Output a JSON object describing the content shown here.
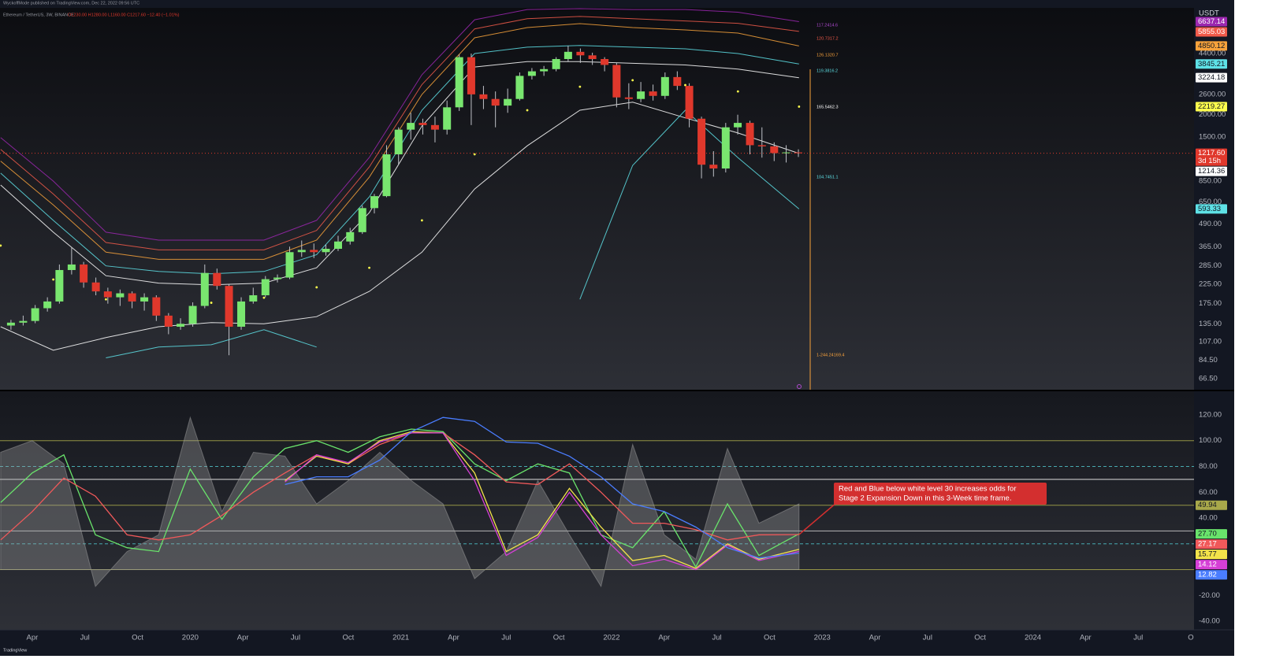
{
  "header": {
    "publisher": "WyckoffMode published on TradingView.com, Dec 22, 2022 09:56 UTC",
    "symbol": "Ethereum / TetherUS, 3W, BINANCE",
    "ohlc": "O1230.00 H1280.00 L1160.00 C1217.60 −12.40 (−1.01%)"
  },
  "footer": "TradingView",
  "chart_data": [
    {
      "type": "candlestick",
      "currency": "USDT",
      "log_scale": true,
      "up_color": "#79e66f",
      "down_color": "#e0382c",
      "xlim": [
        2019.097,
        2024.765
      ],
      "ylim": [
        57.7,
        7930
      ],
      "yticks": [
        {
          "value": 66.5,
          "label": "66.50"
        },
        {
          "value": 84.5,
          "label": "84.50"
        },
        {
          "value": 107,
          "label": "107.00"
        },
        {
          "value": 135,
          "label": "135.00"
        },
        {
          "value": 175,
          "label": "175.00"
        },
        {
          "value": 225,
          "label": "225.00"
        },
        {
          "value": 285,
          "label": "285.00"
        },
        {
          "value": 365,
          "label": "365.00"
        },
        {
          "value": 490,
          "label": "490.00"
        },
        {
          "value": 650,
          "label": "650.00"
        },
        {
          "value": 850,
          "label": "850.00"
        },
        {
          "value": 1500,
          "label": "1500.00"
        },
        {
          "value": 2000,
          "label": "2000.00"
        },
        {
          "value": 2600,
          "label": "2600.00"
        },
        {
          "value": 4400,
          "label": "4400.00"
        }
      ],
      "x": [
        2019.149,
        2019.207,
        2019.264,
        2019.322,
        2019.379,
        2019.437,
        2019.494,
        2019.552,
        2019.609,
        2019.667,
        2019.724,
        2019.782,
        2019.839,
        2019.897,
        2019.954,
        2020.012,
        2020.069,
        2020.127,
        2020.184,
        2020.242,
        2020.299,
        2020.357,
        2020.414,
        2020.472,
        2020.529,
        2020.587,
        2020.644,
        2020.702,
        2020.759,
        2020.817,
        2020.874,
        2020.932,
        2020.989,
        2021.047,
        2021.104,
        2021.162,
        2021.219,
        2021.277,
        2021.334,
        2021.392,
        2021.449,
        2021.507,
        2021.564,
        2021.622,
        2021.679,
        2021.737,
        2021.794,
        2021.852,
        2021.909,
        2021.967,
        2022.024,
        2022.082,
        2022.139,
        2022.197,
        2022.254,
        2022.312,
        2022.369,
        2022.427,
        2022.484,
        2022.542,
        2022.599,
        2022.657,
        2022.714,
        2022.772,
        2022.829,
        2022.887
      ],
      "open": [
        132,
        137,
        140,
        165,
        180,
        270,
        290,
        230,
        205,
        190,
        200,
        180,
        190,
        150,
        130,
        135,
        170,
        260,
        220,
        130,
        180,
        195,
        240,
        245,
        340,
        350,
        340,
        355,
        390,
        440,
        600,
        700,
        1200,
        1650,
        1800,
        1750,
        1650,
        2200,
        4200,
        2600,
        2450,
        2250,
        2450,
        3300,
        3500,
        3600,
        4100,
        4500,
        4300,
        4100,
        3800,
        2500,
        2450,
        2700,
        2550,
        3250,
        2900,
        1900,
        1050,
        1000,
        1700,
        1800,
        1350,
        1330,
        1220,
        1230
      ],
      "high": [
        142,
        150,
        172,
        190,
        290,
        360,
        300,
        245,
        215,
        210,
        205,
        200,
        195,
        155,
        145,
        178,
        290,
        275,
        225,
        190,
        215,
        250,
        255,
        365,
        395,
        380,
        375,
        420,
        465,
        620,
        720,
        1350,
        1700,
        2050,
        1900,
        1950,
        2400,
        4350,
        4400,
        2900,
        2700,
        2800,
        3450,
        3650,
        3750,
        4200,
        4870,
        4700,
        4450,
        4200,
        3900,
        3000,
        3050,
        2950,
        3450,
        3500,
        3000,
        1950,
        1250,
        1800,
        2000,
        1850,
        1700,
        1400,
        1350,
        1280
      ],
      "low": [
        125,
        132,
        136,
        158,
        175,
        255,
        215,
        195,
        175,
        170,
        165,
        160,
        140,
        118,
        125,
        130,
        165,
        210,
        90,
        125,
        175,
        190,
        230,
        240,
        320,
        315,
        325,
        345,
        375,
        430,
        560,
        690,
        1050,
        1450,
        1550,
        1400,
        1550,
        2100,
        1750,
        2150,
        1700,
        2050,
        2400,
        3150,
        3300,
        3500,
        3950,
        3900,
        3800,
        3500,
        2200,
        2150,
        2350,
        2400,
        2450,
        2750,
        1700,
        880,
        900,
        950,
        1550,
        1200,
        1150,
        1100,
        1080,
        1160
      ],
      "close": [
        137,
        140,
        165,
        180,
        270,
        290,
        230,
        205,
        190,
        200,
        180,
        190,
        150,
        130,
        135,
        170,
        260,
        220,
        130,
        180,
        195,
        240,
        245,
        340,
        350,
        340,
        355,
        390,
        440,
        600,
        700,
        1200,
        1650,
        1800,
        1750,
        1650,
        2200,
        4200,
        2600,
        2450,
        2250,
        2450,
        3300,
        3500,
        3600,
        4100,
        4500,
        4300,
        4100,
        3800,
        2500,
        2450,
        2700,
        2550,
        3250,
        2900,
        1900,
        1050,
        1000,
        1700,
        1800,
        1350,
        1330,
        1220,
        1230,
        1217.6
      ],
      "price_tag": {
        "value": 1217.6,
        "label": "1217.60",
        "countdown": "3d 15h",
        "color": "#e0382c"
      },
      "bands": {
        "x": [
          2019.1,
          2019.35,
          2019.6,
          2019.85,
          2020.1,
          2020.35,
          2020.6,
          2020.85,
          2021.1,
          2021.35,
          2021.6,
          2021.85,
          2022.1,
          2022.35,
          2022.6,
          2022.89
        ],
        "series": [
          {
            "color": "#9c27b0",
            "text_color": "#ffffff",
            "style": "line",
            "values": [
              1488,
              850,
              440,
              397,
              397,
              397,
              512,
              1153,
              3350,
              6800,
              7760,
              7850,
              7760,
              7760,
              7500,
              6637.14
            ]
          },
          {
            "color": "#f05a4a",
            "text_color": "#ffffff",
            "style": "line",
            "values": [
              1280,
              720,
              385,
              350,
              350,
              350,
              450,
              1020,
              2950,
              6050,
              6900,
              7100,
              6900,
              6700,
              6500,
              5855.03
            ]
          },
          {
            "color": "#f7a23b",
            "text_color": "#131722",
            "style": "line",
            "values": [
              1100,
              625,
              340,
              310,
              310,
              310,
              397,
              895,
              2600,
              5390,
              6150,
              6470,
              6150,
              5970,
              5730,
              4850.12
            ]
          },
          {
            "color": "#5ee1e6",
            "text_color": "#131722",
            "style": "line",
            "values": [
              942,
              512,
              285,
              265,
              257,
              265,
              329,
              693,
              2120,
              4400,
              4780,
              4880,
              4780,
              4680,
              4400,
              3845.21
            ]
          },
          {
            "color": "#ffffff",
            "text_color": "#131722",
            "style": "line",
            "values": [
              808,
              440,
              251,
              228,
              223,
              228,
              278,
              566,
              1730,
              3700,
              3970,
              3970,
              3880,
              3800,
              3600,
              3224.18
            ]
          },
          {
            "color": "#ffff4d",
            "text_color": "#131722",
            "style": "dots",
            "values": [
              370,
              239,
              185,
              173,
              177,
              189,
              216,
              278,
              512,
              1200,
              2120,
              2870,
              3120,
              2930,
              2700,
              2219.27
            ]
          },
          {
            "color": "#ffffff",
            "text_color": "#131722",
            "style": "line",
            "values": [
              130,
              96,
              113,
              130,
              137,
              135,
              148,
              205,
              340,
              767,
              1340,
              2120,
              2350,
              1920,
              1580,
              1214.36
            ]
          },
          {
            "color": "#5ee1e6",
            "text_color": "#131722",
            "style": "line",
            "values": [
              null,
              null,
              87,
              100,
              103,
              125,
              100,
              null,
              null,
              null,
              null,
              185,
              1040,
              2120,
              1150,
              593.33
            ]
          }
        ]
      },
      "level_notes": [
        {
          "text": "117.2414.6",
          "color": "#b04ad0"
        },
        {
          "text": "120.7317.2",
          "color": "#f05a4a"
        },
        {
          "text": "126.1320.7",
          "color": "#f7a23b"
        },
        {
          "text": "119.3816.2",
          "color": "#5ee1e6"
        },
        {
          "text": "165.5462.3",
          "color": "#ffffff"
        },
        {
          "text": "104.7451.1",
          "color": "#5ee1e6"
        },
        {
          "text": "1-244.24169.4",
          "color": "#f7a23b"
        }
      ]
    },
    {
      "type": "line",
      "xlim": [
        2019.097,
        2024.765
      ],
      "ylim": [
        -46.7,
        138.3
      ],
      "xticks": [
        {
          "value": 2019.25,
          "label": "Apr"
        },
        {
          "value": 2019.5,
          "label": "Jul"
        },
        {
          "value": 2019.75,
          "label": "Oct"
        },
        {
          "value": 2020,
          "label": "2020"
        },
        {
          "value": 2020.25,
          "label": "Apr"
        },
        {
          "value": 2020.5,
          "label": "Jul"
        },
        {
          "value": 2020.75,
          "label": "Oct"
        },
        {
          "value": 2021,
          "label": "2021"
        },
        {
          "value": 2021.25,
          "label": "Apr"
        },
        {
          "value": 2021.5,
          "label": "Jul"
        },
        {
          "value": 2021.75,
          "label": "Oct"
        },
        {
          "value": 2022,
          "label": "2022"
        },
        {
          "value": 2022.25,
          "label": "Apr"
        },
        {
          "value": 2022.5,
          "label": "Jul"
        },
        {
          "value": 2022.75,
          "label": "Oct"
        },
        {
          "value": 2023,
          "label": "2023"
        },
        {
          "value": 2023.25,
          "label": "Apr"
        },
        {
          "value": 2023.5,
          "label": "Jul"
        },
        {
          "value": 2023.75,
          "label": "Oct"
        },
        {
          "value": 2024,
          "label": "2024"
        },
        {
          "value": 2024.25,
          "label": "Apr"
        },
        {
          "value": 2024.5,
          "label": "Jul"
        },
        {
          "value": 2024.75,
          "label": "O"
        }
      ],
      "yticks": [
        {
          "value": 120,
          "label": "120.00"
        },
        {
          "value": 100,
          "label": "100.00"
        },
        {
          "value": 80,
          "label": "80.00"
        },
        {
          "value": 60,
          "label": "60.00"
        },
        {
          "value": 40,
          "label": "40.00"
        },
        {
          "value": -20,
          "label": "-20.00"
        },
        {
          "value": -40,
          "label": "-40.00"
        }
      ],
      "x": [
        2019.1,
        2019.25,
        2019.4,
        2019.55,
        2019.7,
        2019.85,
        2020.0,
        2020.15,
        2020.3,
        2020.45,
        2020.6,
        2020.75,
        2020.9,
        2021.05,
        2021.2,
        2021.35,
        2021.5,
        2021.65,
        2021.8,
        2021.95,
        2022.1,
        2022.25,
        2022.4,
        2022.55,
        2022.7,
        2022.89
      ],
      "area": {
        "color": "#a0a0a0",
        "values": [
          91,
          100,
          82,
          -13,
          14,
          27,
          118,
          45,
          91,
          88,
          51,
          69,
          91,
          69,
          51,
          -7,
          14,
          69,
          27,
          -13,
          97,
          27,
          8,
          94,
          36,
          51
        ]
      },
      "series": [
        {
          "color": "#69e36b",
          "text_color": "#131722",
          "last_label": "27.70",
          "values": [
            52,
            75,
            89,
            27,
            17,
            14,
            78,
            39,
            72,
            94,
            100,
            91,
            103,
            109,
            107,
            82,
            69,
            82,
            75,
            27,
            17,
            45,
            2,
            51,
            11,
            27.7
          ]
        },
        {
          "color": "#f0595a",
          "text_color": "#ffffff",
          "last_label": "27.17",
          "values": [
            23,
            45,
            71,
            57,
            27,
            23,
            27,
            42,
            60,
            75,
            89,
            82,
            97,
            106,
            106,
            89,
            68,
            66,
            82,
            60,
            36,
            36,
            31,
            23,
            27,
            27.17
          ]
        },
        {
          "color": "#f3e34a",
          "text_color": "#131722",
          "last_label": "15.77",
          "values": [
            null,
            null,
            null,
            null,
            null,
            null,
            null,
            null,
            null,
            69,
            88,
            82,
            100,
            107,
            106,
            75,
            14,
            27,
            63,
            33,
            7,
            11,
            1,
            20,
            8,
            15.77
          ]
        },
        {
          "color": "#d63fd6",
          "text_color": "#ffffff",
          "last_label": "14.12",
          "values": [
            null,
            null,
            null,
            null,
            null,
            null,
            null,
            null,
            null,
            68,
            89,
            83,
            99,
            106,
            106,
            69,
            11,
            25,
            60,
            27,
            3,
            8,
            0,
            19,
            7,
            14.12
          ]
        },
        {
          "color": "#4a7dff",
          "text_color": "#ffffff",
          "last_label": "12.82",
          "values": [
            null,
            null,
            null,
            null,
            null,
            null,
            null,
            null,
            null,
            66,
            72,
            72,
            85,
            107,
            118,
            115,
            99,
            98,
            88,
            72,
            51,
            45,
            33,
            17,
            9,
            12.82
          ]
        }
      ],
      "levels": [
        {
          "value": 100,
          "color": "#a8a84a",
          "dashed": false
        },
        {
          "value": 80,
          "color": "#4fc3c7",
          "dashed": true
        },
        {
          "value": 70,
          "color": "#ffffff",
          "dashed": false
        },
        {
          "value": 49.94,
          "color": "#a8a84a",
          "dashed": false,
          "tag": true
        },
        {
          "value": 30,
          "color": "#d0d0d0",
          "dashed": false
        },
        {
          "value": 20,
          "color": "#4fc3c7",
          "dashed": true
        },
        {
          "value": 0,
          "color": "#a8a84a",
          "dashed": false
        }
      ],
      "annotation": {
        "color": "#d32f2f",
        "lines": [
          "Red and Blue below white level 30 increases odds for",
          "Stage 2 Expansion Down in this 3-Week time frame."
        ]
      }
    }
  ]
}
